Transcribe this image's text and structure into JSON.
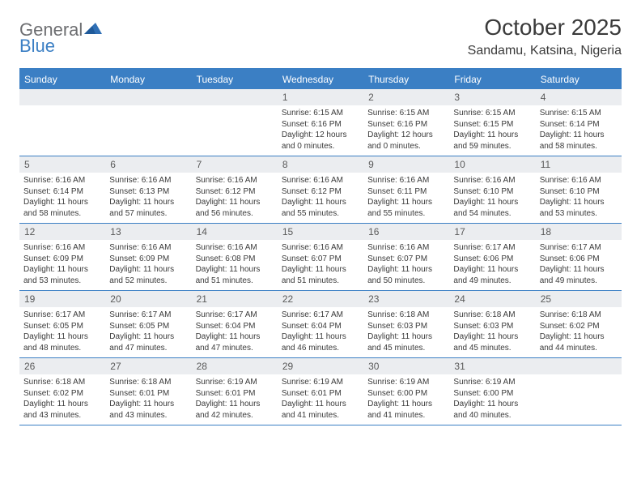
{
  "logo": {
    "general": "General",
    "blue": "Blue",
    "shape_color": "#2f6fb5",
    "text_gray": "#6d6e71",
    "text_blue": "#3b7fc4"
  },
  "header": {
    "month_title": "October 2025",
    "location": "Sandamu, Katsina, Nigeria"
  },
  "colors": {
    "accent": "#3b7fc4",
    "header_bg": "#3b7fc4",
    "header_text": "#ffffff",
    "daynum_bg": "#ebedf0",
    "text": "#3a3a3a",
    "background": "#ffffff"
  },
  "day_names": [
    "Sunday",
    "Monday",
    "Tuesday",
    "Wednesday",
    "Thursday",
    "Friday",
    "Saturday"
  ],
  "weeks": [
    [
      null,
      null,
      null,
      {
        "n": "1",
        "sunrise": "Sunrise: 6:15 AM",
        "sunset": "Sunset: 6:16 PM",
        "daylight": "Daylight: 12 hours and 0 minutes."
      },
      {
        "n": "2",
        "sunrise": "Sunrise: 6:15 AM",
        "sunset": "Sunset: 6:16 PM",
        "daylight": "Daylight: 12 hours and 0 minutes."
      },
      {
        "n": "3",
        "sunrise": "Sunrise: 6:15 AM",
        "sunset": "Sunset: 6:15 PM",
        "daylight": "Daylight: 11 hours and 59 minutes."
      },
      {
        "n": "4",
        "sunrise": "Sunrise: 6:15 AM",
        "sunset": "Sunset: 6:14 PM",
        "daylight": "Daylight: 11 hours and 58 minutes."
      }
    ],
    [
      {
        "n": "5",
        "sunrise": "Sunrise: 6:16 AM",
        "sunset": "Sunset: 6:14 PM",
        "daylight": "Daylight: 11 hours and 58 minutes."
      },
      {
        "n": "6",
        "sunrise": "Sunrise: 6:16 AM",
        "sunset": "Sunset: 6:13 PM",
        "daylight": "Daylight: 11 hours and 57 minutes."
      },
      {
        "n": "7",
        "sunrise": "Sunrise: 6:16 AM",
        "sunset": "Sunset: 6:12 PM",
        "daylight": "Daylight: 11 hours and 56 minutes."
      },
      {
        "n": "8",
        "sunrise": "Sunrise: 6:16 AM",
        "sunset": "Sunset: 6:12 PM",
        "daylight": "Daylight: 11 hours and 55 minutes."
      },
      {
        "n": "9",
        "sunrise": "Sunrise: 6:16 AM",
        "sunset": "Sunset: 6:11 PM",
        "daylight": "Daylight: 11 hours and 55 minutes."
      },
      {
        "n": "10",
        "sunrise": "Sunrise: 6:16 AM",
        "sunset": "Sunset: 6:10 PM",
        "daylight": "Daylight: 11 hours and 54 minutes."
      },
      {
        "n": "11",
        "sunrise": "Sunrise: 6:16 AM",
        "sunset": "Sunset: 6:10 PM",
        "daylight": "Daylight: 11 hours and 53 minutes."
      }
    ],
    [
      {
        "n": "12",
        "sunrise": "Sunrise: 6:16 AM",
        "sunset": "Sunset: 6:09 PM",
        "daylight": "Daylight: 11 hours and 53 minutes."
      },
      {
        "n": "13",
        "sunrise": "Sunrise: 6:16 AM",
        "sunset": "Sunset: 6:09 PM",
        "daylight": "Daylight: 11 hours and 52 minutes."
      },
      {
        "n": "14",
        "sunrise": "Sunrise: 6:16 AM",
        "sunset": "Sunset: 6:08 PM",
        "daylight": "Daylight: 11 hours and 51 minutes."
      },
      {
        "n": "15",
        "sunrise": "Sunrise: 6:16 AM",
        "sunset": "Sunset: 6:07 PM",
        "daylight": "Daylight: 11 hours and 51 minutes."
      },
      {
        "n": "16",
        "sunrise": "Sunrise: 6:16 AM",
        "sunset": "Sunset: 6:07 PM",
        "daylight": "Daylight: 11 hours and 50 minutes."
      },
      {
        "n": "17",
        "sunrise": "Sunrise: 6:17 AM",
        "sunset": "Sunset: 6:06 PM",
        "daylight": "Daylight: 11 hours and 49 minutes."
      },
      {
        "n": "18",
        "sunrise": "Sunrise: 6:17 AM",
        "sunset": "Sunset: 6:06 PM",
        "daylight": "Daylight: 11 hours and 49 minutes."
      }
    ],
    [
      {
        "n": "19",
        "sunrise": "Sunrise: 6:17 AM",
        "sunset": "Sunset: 6:05 PM",
        "daylight": "Daylight: 11 hours and 48 minutes."
      },
      {
        "n": "20",
        "sunrise": "Sunrise: 6:17 AM",
        "sunset": "Sunset: 6:05 PM",
        "daylight": "Daylight: 11 hours and 47 minutes."
      },
      {
        "n": "21",
        "sunrise": "Sunrise: 6:17 AM",
        "sunset": "Sunset: 6:04 PM",
        "daylight": "Daylight: 11 hours and 47 minutes."
      },
      {
        "n": "22",
        "sunrise": "Sunrise: 6:17 AM",
        "sunset": "Sunset: 6:04 PM",
        "daylight": "Daylight: 11 hours and 46 minutes."
      },
      {
        "n": "23",
        "sunrise": "Sunrise: 6:18 AM",
        "sunset": "Sunset: 6:03 PM",
        "daylight": "Daylight: 11 hours and 45 minutes."
      },
      {
        "n": "24",
        "sunrise": "Sunrise: 6:18 AM",
        "sunset": "Sunset: 6:03 PM",
        "daylight": "Daylight: 11 hours and 45 minutes."
      },
      {
        "n": "25",
        "sunrise": "Sunrise: 6:18 AM",
        "sunset": "Sunset: 6:02 PM",
        "daylight": "Daylight: 11 hours and 44 minutes."
      }
    ],
    [
      {
        "n": "26",
        "sunrise": "Sunrise: 6:18 AM",
        "sunset": "Sunset: 6:02 PM",
        "daylight": "Daylight: 11 hours and 43 minutes."
      },
      {
        "n": "27",
        "sunrise": "Sunrise: 6:18 AM",
        "sunset": "Sunset: 6:01 PM",
        "daylight": "Daylight: 11 hours and 43 minutes."
      },
      {
        "n": "28",
        "sunrise": "Sunrise: 6:19 AM",
        "sunset": "Sunset: 6:01 PM",
        "daylight": "Daylight: 11 hours and 42 minutes."
      },
      {
        "n": "29",
        "sunrise": "Sunrise: 6:19 AM",
        "sunset": "Sunset: 6:01 PM",
        "daylight": "Daylight: 11 hours and 41 minutes."
      },
      {
        "n": "30",
        "sunrise": "Sunrise: 6:19 AM",
        "sunset": "Sunset: 6:00 PM",
        "daylight": "Daylight: 11 hours and 41 minutes."
      },
      {
        "n": "31",
        "sunrise": "Sunrise: 6:19 AM",
        "sunset": "Sunset: 6:00 PM",
        "daylight": "Daylight: 11 hours and 40 minutes."
      },
      null
    ]
  ]
}
